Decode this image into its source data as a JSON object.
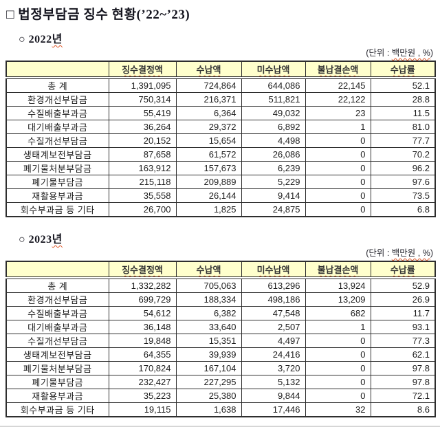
{
  "doc": {
    "title": "□ 법정부담금 징수 현황(’22~’23)",
    "unit": {
      "prefix": "(단위 : ",
      "emph": "백만원 , %",
      "suffix": ")"
    }
  },
  "columns": [
    "징수결정액",
    "수납액",
    "미수납액",
    "불납결손액",
    "수납률"
  ],
  "sections": [
    {
      "heading_prefix": "○ 2022",
      "heading_emph": "년",
      "rows": [
        {
          "label": "총  계",
          "values": [
            "1,391,095",
            "724,864",
            "644,086",
            "22,145",
            "52.1"
          ]
        },
        {
          "label": "환경개선부담금",
          "values": [
            "750,314",
            "216,371",
            "511,821",
            "22,122",
            "28.8"
          ]
        },
        {
          "label": "수질배출부과금",
          "values": [
            "55,419",
            "6,364",
            "49,032",
            "23",
            "11.5"
          ]
        },
        {
          "label": "대기배출부과금",
          "values": [
            "36,264",
            "29,372",
            "6,892",
            "1",
            "81.0"
          ]
        },
        {
          "label": "수질개선부담금",
          "values": [
            "20,152",
            "15,654",
            "4,498",
            "0",
            "77.7"
          ]
        },
        {
          "label": "생태계보전부담금",
          "values": [
            "87,658",
            "61,572",
            "26,086",
            "0",
            "70.2"
          ]
        },
        {
          "label": "폐기물처분부담금",
          "values": [
            "163,912",
            "157,673",
            "6,239",
            "0",
            "96.2"
          ]
        },
        {
          "label": "폐기물부담금",
          "values": [
            "215,118",
            "209,889",
            "5,229",
            "0",
            "97.6"
          ]
        },
        {
          "label": "재활용부과금",
          "values": [
            "35,558",
            "26,144",
            "9,414",
            "0",
            "73.5"
          ]
        },
        {
          "label": "회수부과금 등 기타",
          "values": [
            "26,700",
            "1,825",
            "24,875",
            "0",
            "6.8"
          ]
        }
      ]
    },
    {
      "heading_prefix": "○ 2023",
      "heading_emph": "년",
      "rows": [
        {
          "label": "총  계",
          "values": [
            "1,332,282",
            "705,063",
            "613,296",
            "13,924",
            "52.9"
          ]
        },
        {
          "label": "환경개선부담금",
          "values": [
            "699,729",
            "188,334",
            "498,186",
            "13,209",
            "26.9"
          ]
        },
        {
          "label": "수질배출부과금",
          "values": [
            "54,612",
            "6,382",
            "47,548",
            "682",
            "11.7"
          ]
        },
        {
          "label": "대기배출부과금",
          "values": [
            "36,148",
            "33,640",
            "2,507",
            "1",
            "93.1"
          ]
        },
        {
          "label": "수질개선부담금",
          "values": [
            "19,848",
            "15,351",
            "4,497",
            "0",
            "77.3"
          ]
        },
        {
          "label": "생태계보전부담금",
          "values": [
            "64,355",
            "39,939",
            "24,416",
            "0",
            "62.1"
          ]
        },
        {
          "label": "폐기물처분부담금",
          "values": [
            "170,824",
            "167,104",
            "3,720",
            "0",
            "97.8"
          ]
        },
        {
          "label": "폐기물부담금",
          "values": [
            "232,427",
            "227,295",
            "5,132",
            "0",
            "97.8"
          ]
        },
        {
          "label": "재활용부과금",
          "values": [
            "35,223",
            "25,380",
            "9,844",
            "0",
            "72.1"
          ]
        },
        {
          "label": "회수부과금 등 기타",
          "values": [
            "19,115",
            "1,638",
            "17,446",
            "32",
            "8.6"
          ]
        }
      ]
    }
  ],
  "colors": {
    "header_bg": "#FFFFCC",
    "border": "#2E2E2E",
    "squiggle": "#E05A2B",
    "page_edge": "#D6D6D6"
  }
}
